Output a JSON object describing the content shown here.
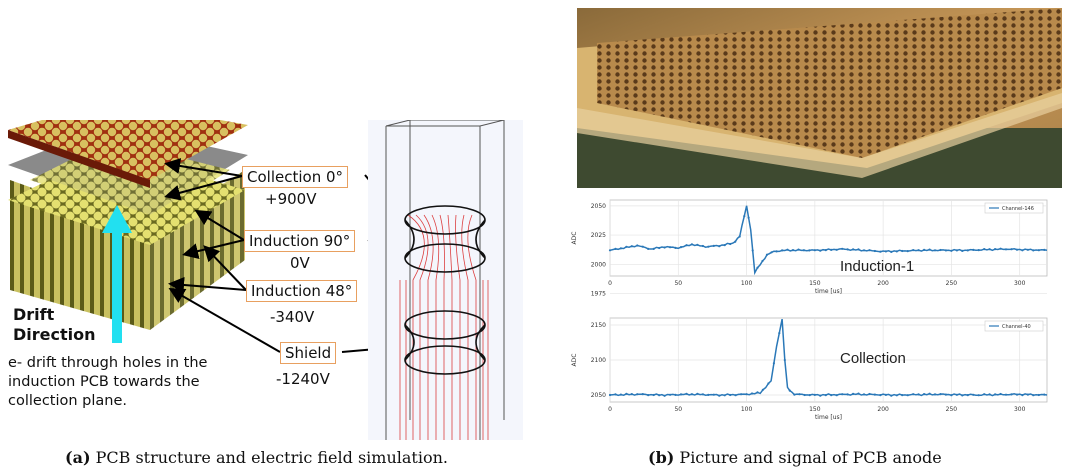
{
  "panel_a": {
    "layers": [
      {
        "name": "Collection 0°",
        "voltage": "+900V"
      },
      {
        "name": "Induction 90°",
        "voltage": "0V"
      },
      {
        "name": "Induction 48°",
        "voltage": "-340V"
      },
      {
        "name": "Shield",
        "voltage": "-1240V"
      }
    ],
    "drift_label_line1": "Drift",
    "drift_label_line2": "Direction",
    "note_lines": [
      "e- drift through holes in the",
      "induction PCB towards the",
      "collection plane."
    ],
    "caption_label": "(a)",
    "caption_text": "PCB structure and electric field simulation."
  },
  "panel_b": {
    "caption_label": "(b)",
    "caption_text": "Picture and signal of PCB anode",
    "plot_induction": {
      "annotation": "Induction-1"
    },
    "plot_collection": {
      "annotation": "Collection"
    }
  },
  "chart_data": [
    {
      "type": "line",
      "title": "",
      "legend": "top-right",
      "xlabel": "time [us]",
      "ylabel": "ADC",
      "xlim": [
        0,
        320
      ],
      "ylim": [
        1990,
        2055
      ],
      "xticks": [
        "0",
        "50",
        "100",
        "150",
        "200",
        "250",
        "300"
      ],
      "yticks": [
        "2050",
        "2025",
        "2000",
        "1975"
      ],
      "series": [
        {
          "name": "Channel-146",
          "x": [
            0,
            10,
            20,
            30,
            40,
            50,
            60,
            70,
            80,
            90,
            95,
            100,
            103,
            106,
            110,
            115,
            120,
            130,
            150,
            170,
            200,
            230,
            260,
            290,
            320
          ],
          "values": [
            2012,
            2014,
            2016,
            2013,
            2015,
            2014,
            2017,
            2015,
            2016,
            2018,
            2024,
            2050,
            2030,
            1993,
            2000,
            2008,
            2011,
            2012,
            2012,
            2013,
            2011,
            2012,
            2012,
            2013,
            2012
          ]
        }
      ]
    },
    {
      "type": "line",
      "title": "",
      "legend": "top-right",
      "xlabel": "time [us]",
      "ylabel": "ADC",
      "xlim": [
        0,
        320
      ],
      "ylim": [
        2040,
        2160
      ],
      "xticks": [
        "0",
        "50",
        "100",
        "150",
        "200",
        "250",
        "300"
      ],
      "yticks": [
        "2150",
        "2100",
        "2050"
      ],
      "series": [
        {
          "name": "Channel-40",
          "x": [
            0,
            20,
            40,
            60,
            80,
            100,
            110,
            118,
            122,
            126,
            128,
            130,
            135,
            150,
            180,
            210,
            240,
            270,
            300,
            320
          ],
          "values": [
            2050,
            2051,
            2050,
            2051,
            2050,
            2051,
            2053,
            2070,
            2120,
            2158,
            2100,
            2060,
            2051,
            2050,
            2051,
            2050,
            2051,
            2050,
            2051,
            2050
          ]
        }
      ]
    }
  ]
}
